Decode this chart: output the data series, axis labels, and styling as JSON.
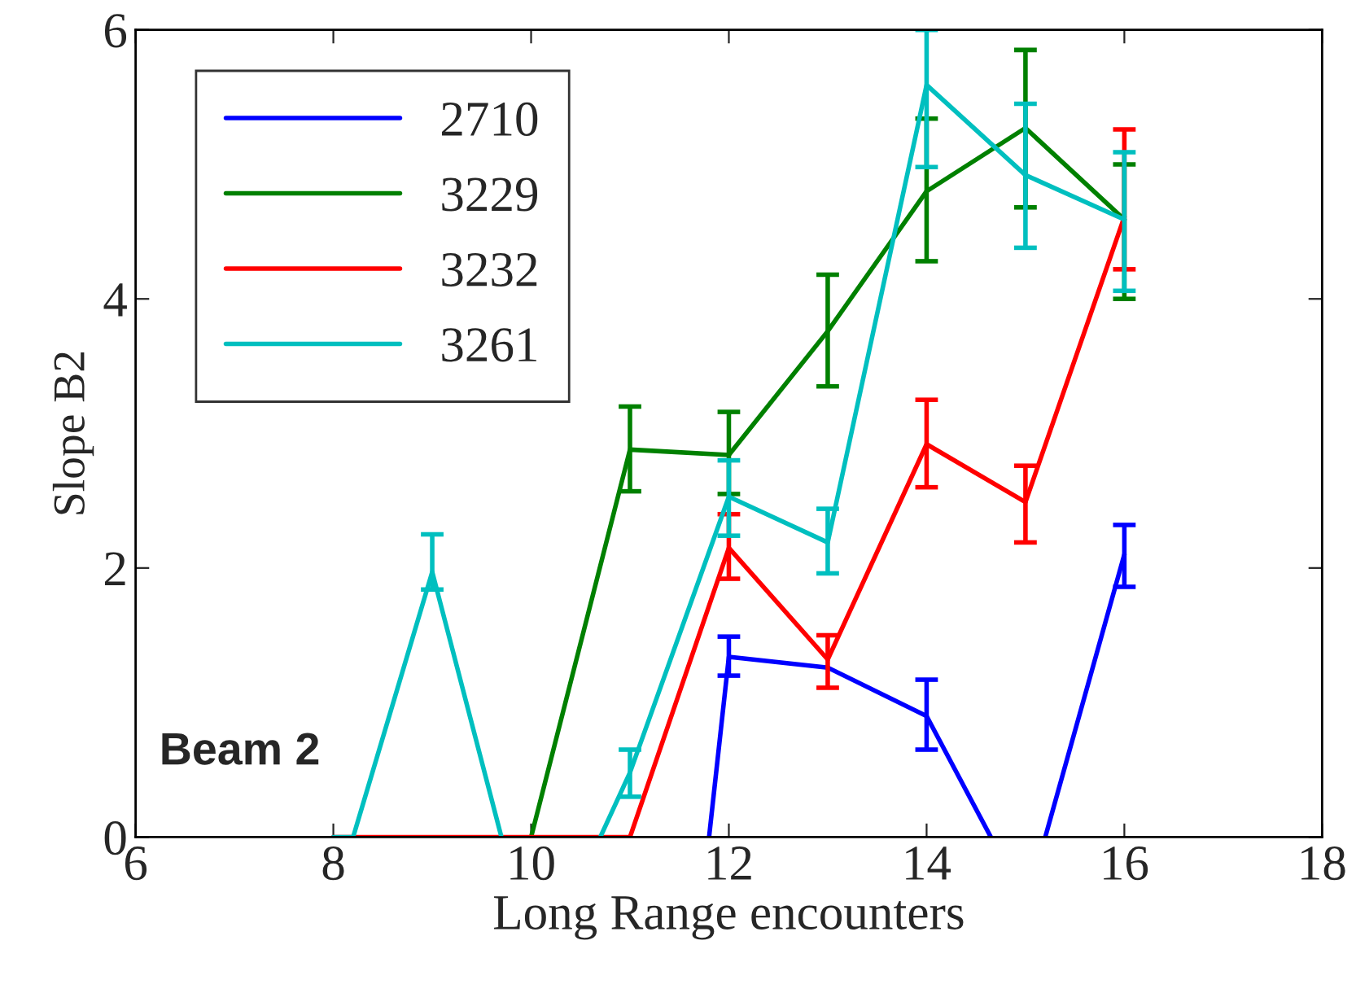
{
  "chart_data": {
    "type": "line",
    "xlabel": "Long Range encounters",
    "ylabel": "Slope B2",
    "x": [
      8,
      9,
      10,
      11,
      12,
      13,
      14,
      15,
      16
    ],
    "xlim": [
      6,
      18
    ],
    "xticks": [
      6,
      8,
      10,
      12,
      14,
      16,
      18
    ],
    "ylim": [
      0,
      6
    ],
    "yticks": [
      0,
      2,
      4,
      6
    ],
    "grid": false,
    "legend": "top left",
    "marker": "none",
    "line_style": "solid",
    "annotations": [
      "Beam 2"
    ],
    "series": [
      {
        "name": "2710",
        "color": "#0000ff",
        "x": [
          11.8,
          12,
          13,
          14,
          14.65,
          14.9,
          15.2,
          16
        ],
        "values": [
          0,
          1.34,
          1.26,
          0.9,
          0,
          null,
          0,
          2.1
        ],
        "errors": [
          null,
          [
            1.2,
            1.49
          ],
          null,
          [
            0.65,
            1.17
          ],
          null,
          null,
          null,
          [
            1.86,
            2.32
          ]
        ]
      },
      {
        "name": "3229",
        "color": "#008000",
        "values": [
          null,
          null,
          0,
          2.88,
          2.84,
          3.76,
          4.8,
          5.27,
          4.59
        ],
        "errors": [
          null,
          null,
          null,
          [
            2.57,
            3.2
          ],
          [
            2.55,
            3.16
          ],
          [
            3.35,
            4.18
          ],
          [
            4.28,
            5.34
          ],
          [
            4.68,
            5.85
          ],
          [
            4.0,
            5.0
          ]
        ]
      },
      {
        "name": "3232",
        "color": "#ff0000",
        "values": [
          0,
          0,
          0,
          0,
          2.15,
          1.32,
          2.92,
          2.49,
          4.61
        ],
        "errors": [
          null,
          null,
          null,
          null,
          [
            1.92,
            2.4
          ],
          [
            1.11,
            1.5
          ],
          [
            2.6,
            3.25
          ],
          [
            2.19,
            2.76
          ],
          [
            4.22,
            5.26
          ]
        ]
      },
      {
        "name": "3261",
        "color": "#00bfbf",
        "x": [
          8,
          8.2,
          9,
          9.7,
          10.2,
          10.7,
          11,
          12,
          13,
          14,
          15,
          16
        ],
        "values": [
          0,
          0,
          1.97,
          0,
          null,
          0,
          0.48,
          2.53,
          2.19,
          5.59,
          4.92,
          4.59
        ],
        "errors": [
          null,
          null,
          [
            1.84,
            2.25
          ],
          null,
          null,
          null,
          [
            0.3,
            0.65
          ],
          [
            2.24,
            2.8
          ],
          [
            1.96,
            2.44
          ],
          [
            4.98,
            6.0
          ],
          [
            4.38,
            5.45
          ],
          [
            4.06,
            5.09
          ]
        ]
      }
    ]
  }
}
